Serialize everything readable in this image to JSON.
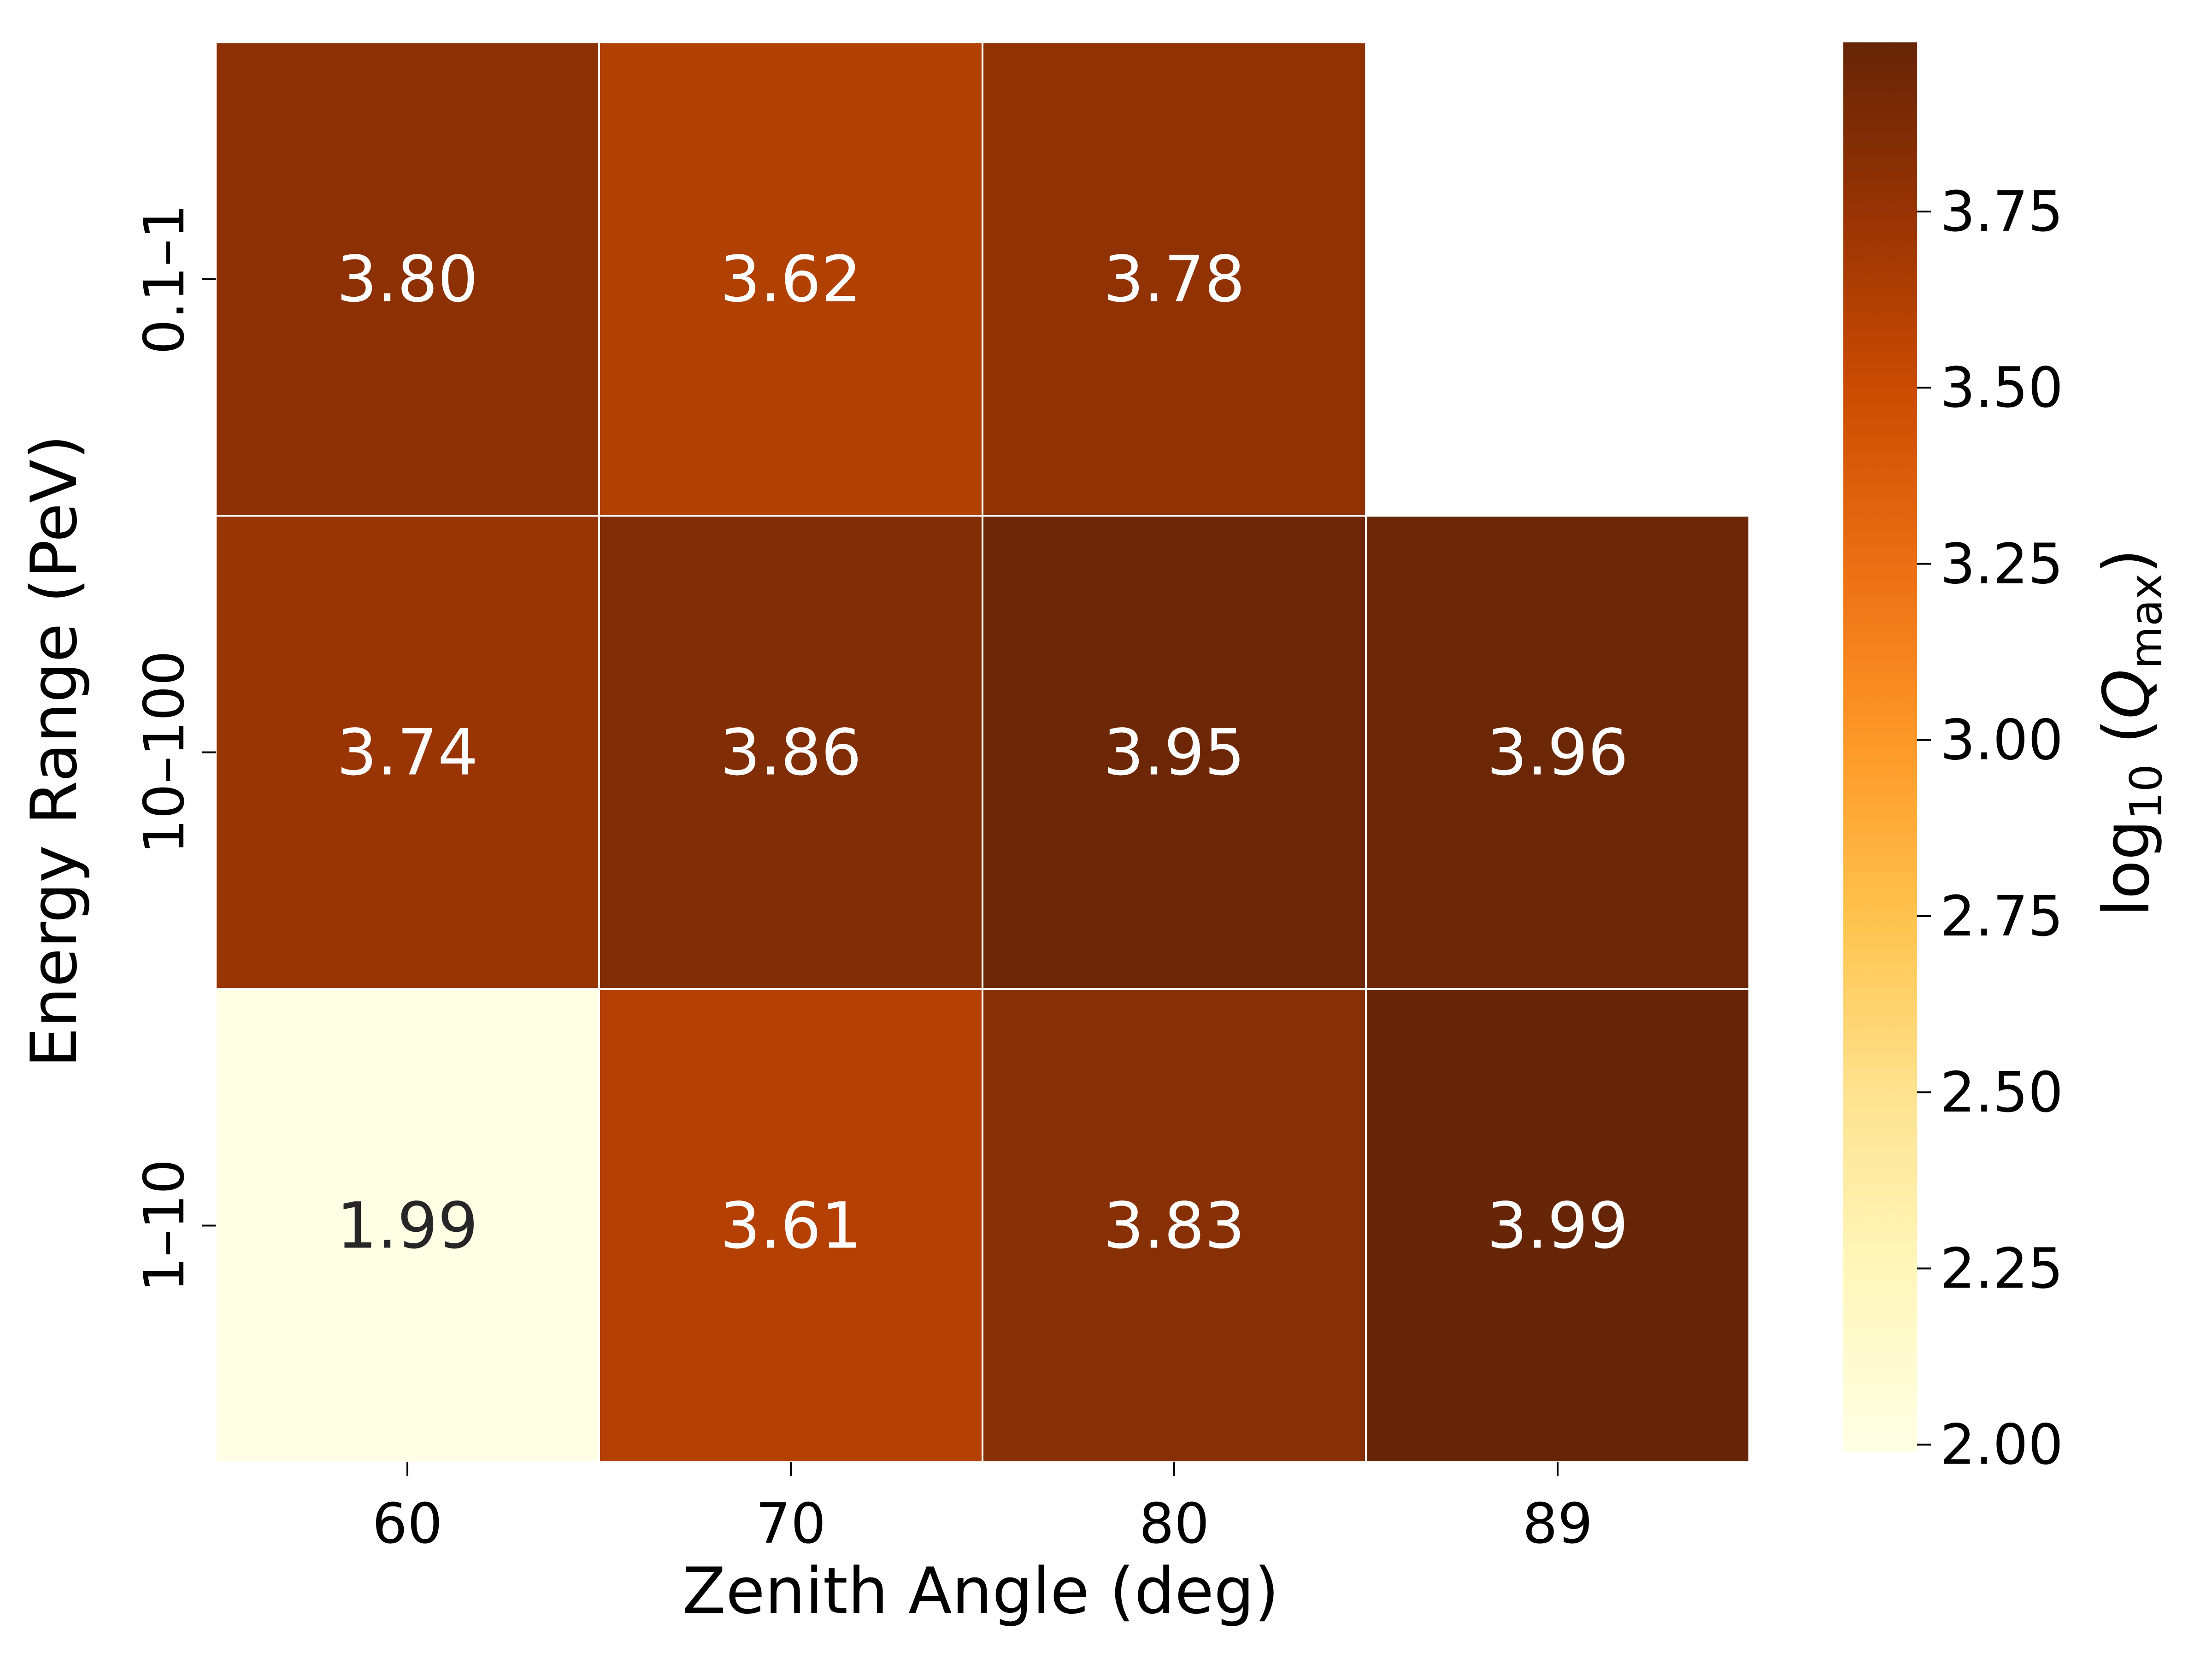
{
  "chart_data": {
    "type": "heatmap",
    "x_categories": [
      "60",
      "70",
      "80",
      "89"
    ],
    "y_categories": [
      "0.1–1",
      "10–100",
      "1–10"
    ],
    "values": [
      [
        3.8,
        3.62,
        3.78,
        null
      ],
      [
        3.74,
        3.86,
        3.95,
        3.96
      ],
      [
        1.99,
        3.61,
        3.83,
        3.99
      ]
    ],
    "value_labels": [
      [
        "3.80",
        "3.62",
        "3.78",
        ""
      ],
      [
        "3.74",
        "3.86",
        "3.95",
        "3.96"
      ],
      [
        "1.99",
        "3.61",
        "3.83",
        "3.99"
      ]
    ],
    "xlabel": "Zenith Angle (deg)",
    "ylabel": "Energy Range (PeV)",
    "colorbar": {
      "label_prefix": "log",
      "label_sub": "10",
      "label_var": "Q",
      "label_var_sub": "max",
      "min": 1.99,
      "max": 3.99,
      "ticks": [
        "2.00",
        "2.25",
        "2.50",
        "2.75",
        "3.00",
        "3.25",
        "3.50",
        "3.75"
      ],
      "colormap": "YlOrBr"
    },
    "grid": false,
    "annotation_colors": {
      "dark_cell": "#ffffff",
      "light_cell": "#262626"
    }
  }
}
